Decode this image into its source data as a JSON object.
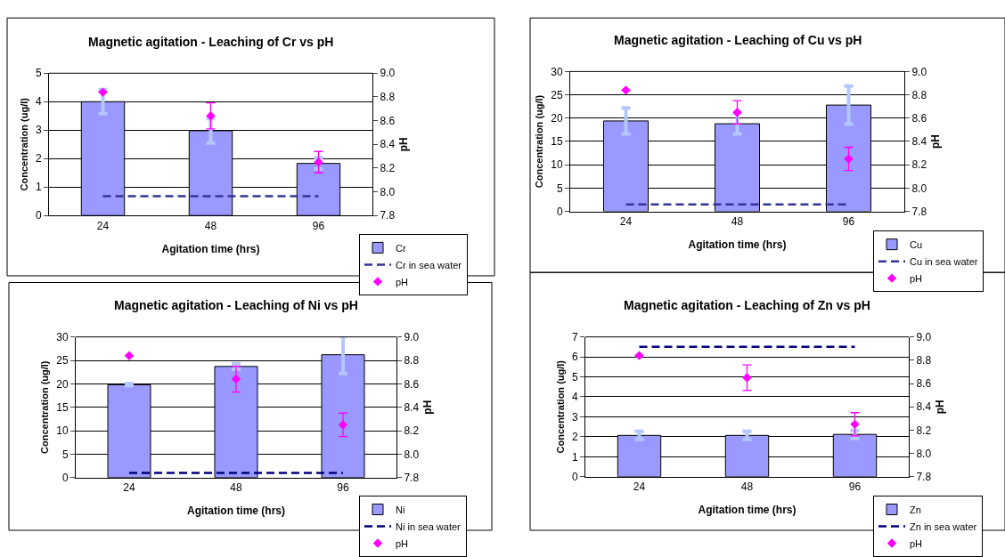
{
  "chart_data": [
    {
      "type": "bar",
      "title": "Magnetic agitation - Leaching of Cr vs pH",
      "xlabel": "Agitation time (hrs)",
      "ylabel": "Concentration (ug/l)",
      "y2label": "pH",
      "categories": [
        "24",
        "48",
        "96"
      ],
      "ylim": [
        0,
        5
      ],
      "yticks": [
        0,
        1,
        2,
        3,
        4,
        5
      ],
      "y2lim": [
        7.8,
        9.0
      ],
      "y2ticks": [
        {
          "value": 7.8,
          "label": "7.8"
        },
        {
          "value": 8.0,
          "label": "8.0"
        },
        {
          "value": 8.2,
          "label": "8.2"
        },
        {
          "value": 8.4,
          "label": "8.4"
        },
        {
          "value": 8.6,
          "label": "8.6"
        },
        {
          "value": 8.8,
          "label": "8.8"
        },
        {
          "value": 9.0,
          "label": "9.0"
        }
      ],
      "grid": "y",
      "legend": "bottom right",
      "series": [
        {
          "name": "Cr",
          "color": "#9999ff",
          "values": [
            4.0,
            2.98,
            1.83
          ],
          "errors": [
            0.42,
            0.43,
            0.2
          ]
        },
        {
          "name": "Cr in sea water",
          "type": "line",
          "color": "#333399",
          "line_style": "dashed",
          "marker": "none",
          "values": [
            0.68,
            0.68,
            0.68
          ]
        },
        {
          "name": "pH",
          "type": "scatter",
          "axis": "y2",
          "color": "#ff00ff",
          "marker": "diamond",
          "values": [
            8.84,
            8.64,
            8.25
          ],
          "errors": [
            null,
            0.11,
            0.09
          ]
        }
      ]
    },
    {
      "type": "bar",
      "title": "Magnetic agitation - Leaching of Cu vs pH",
      "xlabel": "Agitation time (hrs)",
      "ylabel": "Concentration (ug/l)",
      "y2label": "pH",
      "categories": [
        "24",
        "48",
        "96"
      ],
      "ylim": [
        0,
        30
      ],
      "yticks": [
        0,
        5,
        10,
        15,
        20,
        25,
        30
      ],
      "y2lim": [
        7.8,
        9.0
      ],
      "y2ticks": [
        {
          "value": 7.8,
          "label": "7.8"
        },
        {
          "value": 8.0,
          "label": "8.0"
        },
        {
          "value": 8.2,
          "label": "8.2"
        },
        {
          "value": 8.4,
          "label": "8.4"
        },
        {
          "value": 8.6,
          "label": "8.6"
        },
        {
          "value": 8.8,
          "label": "8.8"
        },
        {
          "value": 9.0,
          "label": "9.0"
        }
      ],
      "grid": "y",
      "legend": "bottom right",
      "series": [
        {
          "name": "Cu",
          "color": "#9999ff",
          "values": [
            19.4,
            18.8,
            22.8
          ],
          "errors": [
            2.8,
            2.2,
            4.1
          ]
        },
        {
          "name": "Cu in sea water",
          "type": "line",
          "color": "#333399",
          "line_style": "dashed",
          "marker": "none",
          "values": [
            1.5,
            1.5,
            1.5
          ]
        },
        {
          "name": "pH",
          "type": "scatter",
          "axis": "y2",
          "color": "#ff00ff",
          "marker": "diamond",
          "values": [
            8.84,
            8.65,
            8.25
          ],
          "errors": [
            null,
            0.1,
            0.1
          ]
        }
      ]
    },
    {
      "type": "bar",
      "title": "Magnetic agitation - Leaching of Ni vs pH",
      "xlabel": "Agitation time (hrs)",
      "ylabel": "Concentration (ug/l)",
      "y2label": "pH",
      "categories": [
        "24",
        "48",
        "96"
      ],
      "ylim": [
        0,
        30
      ],
      "yticks": [
        0,
        5,
        10,
        15,
        20,
        25,
        30
      ],
      "y2lim": [
        7.8,
        9.0
      ],
      "y2ticks": [
        {
          "value": 7.8,
          "label": "7.8"
        },
        {
          "value": 8.0,
          "label": "8.0"
        },
        {
          "value": 8.2,
          "label": "8.2"
        },
        {
          "value": 8.4,
          "label": "8.4"
        },
        {
          "value": 8.6,
          "label": "8.6"
        },
        {
          "value": 8.8,
          "label": "8.8"
        },
        {
          "value": 9.0,
          "label": "9.0"
        }
      ],
      "grid": "y",
      "legend": "bottom right",
      "series": [
        {
          "name": "Ni",
          "color": "#9999ff",
          "values": [
            19.8,
            23.7,
            26.2
          ],
          "errors": [
            0.2,
            0.6,
            4.0
          ]
        },
        {
          "name": "Ni in sea water",
          "type": "line",
          "color": "#000080",
          "line_style": "dashed",
          "marker": "none",
          "values": [
            1.0,
            1.0,
            1.0
          ]
        },
        {
          "name": "pH",
          "type": "scatter",
          "axis": "y2",
          "color": "#ff00ff",
          "marker": "diamond",
          "values": [
            8.84,
            8.64,
            8.25
          ],
          "errors": [
            null,
            0.11,
            0.1
          ]
        }
      ]
    },
    {
      "type": "bar",
      "title": "Magnetic agitation - Leaching of Zn vs pH",
      "xlabel": "Agitation time (hrs)",
      "ylabel": "Concentration (ug/l)",
      "y2label": "pH",
      "categories": [
        "24",
        "48",
        "96"
      ],
      "ylim": [
        0,
        7
      ],
      "yticks": [
        0,
        1,
        2,
        3,
        4,
        5,
        6,
        7
      ],
      "y2lim": [
        7.8,
        9.0
      ],
      "y2ticks": [
        {
          "value": 7.8,
          "label": "7.8"
        },
        {
          "value": 8.0,
          "label": "8.0"
        },
        {
          "value": 8.2,
          "label": "8.2"
        },
        {
          "value": 8.4,
          "label": "8.4"
        },
        {
          "value": 8.6,
          "label": "8.6"
        },
        {
          "value": 8.8,
          "label": "8.8"
        },
        {
          "value": 9.0,
          "label": "9.0"
        }
      ],
      "grid": "y",
      "legend": "bottom right",
      "series": [
        {
          "name": "Zn",
          "color": "#9999ff",
          "values": [
            2.07,
            2.07,
            2.12
          ],
          "errors": [
            0.2,
            0.2,
            0.2
          ]
        },
        {
          "name": "Zn in sea water",
          "type": "line",
          "color": "#000080",
          "line_style": "dashed",
          "marker": "none",
          "values": [
            6.5,
            6.5,
            6.5
          ]
        },
        {
          "name": "pH",
          "type": "scatter",
          "axis": "y2",
          "color": "#ff00ff",
          "marker": "diamond",
          "values": [
            8.84,
            8.65,
            8.25
          ],
          "errors": [
            null,
            0.11,
            0.1
          ]
        }
      ]
    }
  ]
}
